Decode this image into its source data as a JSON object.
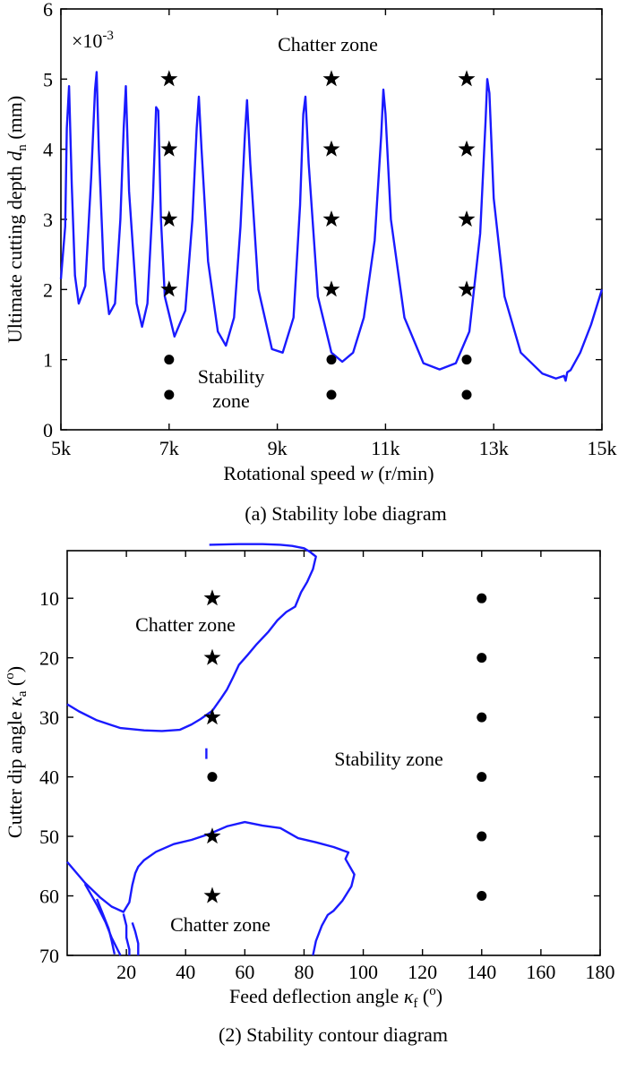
{
  "chart_data": [
    {
      "type": "line",
      "caption": "(a) Stability lobe diagram",
      "xlabel": "Rotational speed w (r/min)",
      "xlabel_parts": [
        "Rotational speed ",
        "w",
        " (r/min)"
      ],
      "ylabel_parts": [
        "Ultimate cutting depth ",
        "d",
        "n",
        " (mm)"
      ],
      "multiplier_base": "×10",
      "multiplier_exp": "-3",
      "xlim": [
        5000,
        15000
      ],
      "ylim": [
        0,
        6
      ],
      "xticks": [
        5000,
        7000,
        9000,
        11000,
        13000,
        15000
      ],
      "xtick_labels": [
        "5k",
        "7k",
        "9k",
        "11k",
        "13k",
        "15k"
      ],
      "yticks": [
        0,
        1,
        2,
        3,
        4,
        5,
        6
      ],
      "ytick_labels": [
        "0",
        "1",
        "2",
        "3",
        "4",
        "5",
        "6"
      ],
      "grid": false,
      "annotations": [
        "Chatter zone",
        "Stability",
        "zone"
      ],
      "lobe_curve": {
        "color": "#1a1aff",
        "x": [
          5000,
          5080,
          5110,
          5150,
          5200,
          5260,
          5330,
          5450,
          5560,
          5630,
          5660,
          5700,
          5790,
          5890,
          6000,
          6100,
          6160,
          6200,
          6260,
          6400,
          6500,
          6600,
          6700,
          6760,
          6800,
          6850,
          6920,
          7100,
          7300,
          7430,
          7510,
          7550,
          7600,
          7720,
          7900,
          8050,
          8200,
          8320,
          8400,
          8440,
          8500,
          8650,
          8900,
          9100,
          9300,
          9420,
          9480,
          9520,
          9580,
          9750,
          10000,
          10200,
          10400,
          10600,
          10800,
          10920,
          10960,
          11000,
          11100,
          11350,
          11700,
          12000,
          12300,
          12550,
          12750,
          12850,
          12880,
          12920,
          13000,
          13200,
          13500,
          13900,
          14150,
          14300,
          14330,
          14360,
          14420,
          14600,
          14800,
          15000
        ],
        "y": [
          2.15,
          2.9,
          4.3,
          4.9,
          3.5,
          2.2,
          1.8,
          2.05,
          3.6,
          4.85,
          5.1,
          4.0,
          2.3,
          1.65,
          1.8,
          3.0,
          4.3,
          4.9,
          3.4,
          1.8,
          1.47,
          1.8,
          3.3,
          4.6,
          4.55,
          3.0,
          1.9,
          1.33,
          1.7,
          3.0,
          4.3,
          4.75,
          4.0,
          2.4,
          1.4,
          1.2,
          1.6,
          2.9,
          4.2,
          4.7,
          3.8,
          2.0,
          1.15,
          1.1,
          1.6,
          3.2,
          4.5,
          4.75,
          3.8,
          1.9,
          1.1,
          0.97,
          1.1,
          1.6,
          2.7,
          4.2,
          4.85,
          4.5,
          3.0,
          1.6,
          0.95,
          0.86,
          0.95,
          1.4,
          2.8,
          4.4,
          5.0,
          4.8,
          3.3,
          1.9,
          1.1,
          0.8,
          0.73,
          0.77,
          0.7,
          0.82,
          0.85,
          1.1,
          1.5,
          2.0
        ]
      },
      "star_markers": {
        "x": [
          7000,
          7000,
          7000,
          7000,
          10000,
          10000,
          10000,
          10000,
          12500,
          12500,
          12500,
          12500
        ],
        "y": [
          5,
          4,
          3,
          2,
          5,
          4,
          3,
          2,
          5,
          4,
          3,
          2
        ]
      },
      "dot_markers": {
        "x": [
          7000,
          7000,
          10000,
          10000,
          12500,
          12500
        ],
        "y": [
          1,
          0.5,
          1,
          0.5,
          1,
          0.5
        ]
      }
    },
    {
      "type": "contour",
      "caption": "(2) Stability contour diagram",
      "xlabel_parts": [
        "Feed deflection angle ",
        "κ",
        "f",
        " (",
        "o",
        ")"
      ],
      "ylabel_parts": [
        "Cutter dip angle ",
        "κ",
        "a",
        " (",
        "o",
        ")"
      ],
      "xlim": [
        0,
        180
      ],
      "ylim": [
        70,
        2
      ],
      "y_inverted": true,
      "xticks": [
        20,
        40,
        60,
        80,
        100,
        120,
        140,
        160,
        180
      ],
      "xtick_labels": [
        "20",
        "40",
        "60",
        "80",
        "100",
        "120",
        "140",
        "160",
        "180"
      ],
      "yticks": [
        10,
        20,
        30,
        40,
        50,
        60,
        70
      ],
      "ytick_labels": [
        "10",
        "20",
        "30",
        "40",
        "50",
        "60",
        "70"
      ],
      "grid": false,
      "annotations": [
        "Chatter zone",
        "Stability  zone",
        "Chatter zone"
      ],
      "contour_color": "#1a1aff",
      "contours": [
        {
          "x": [
            0,
            4,
            10,
            18,
            26,
            32,
            38,
            42,
            45,
            47,
            49,
            52,
            54,
            56,
            58,
            61,
            64,
            68,
            71,
            74,
            77,
            79,
            81,
            83,
            84,
            83,
            82,
            80,
            76,
            72,
            66,
            58,
            48
          ],
          "y": [
            27.8,
            29,
            30.5,
            31.8,
            32.2,
            32.3,
            32.1,
            31.2,
            30.3,
            29.6,
            28.9,
            26.8,
            25.3,
            23.3,
            21.2,
            19.5,
            17.7,
            15.6,
            13.7,
            12.3,
            11.4,
            9.0,
            7.3,
            5.1,
            3.0,
            2.6,
            2.2,
            1.6,
            1.2,
            1.0,
            0.9,
            0.9,
            1.0
          ]
        },
        {
          "x": [
            47,
            47,
            47
          ],
          "y": [
            35.2,
            36.1,
            37.0
          ]
        },
        {
          "x": [
            0,
            6,
            11,
            15,
            19,
            21,
            22,
            23,
            24,
            26,
            30,
            36,
            42,
            48,
            54,
            60,
            66,
            72,
            78,
            84,
            90,
            95,
            94,
            97,
            96,
            93,
            90,
            88,
            86,
            84,
            83
          ],
          "y": [
            54.3,
            57.8,
            60.2,
            61.8,
            62.7,
            61.1,
            58.2,
            56.2,
            55.1,
            54.0,
            52.6,
            51.3,
            50.6,
            49.6,
            48.3,
            47.6,
            48.2,
            48.6,
            50.3,
            51.0,
            51.8,
            52.7,
            53.8,
            56.4,
            58.4,
            60.8,
            62.5,
            63.2,
            65.0,
            67.6,
            70.0
          ]
        },
        {
          "x": [
            6,
            10,
            13,
            15,
            17,
            18
          ],
          "y": [
            58.0,
            61.5,
            64.5,
            67.0,
            69.0,
            70.0
          ]
        },
        {
          "x": [
            10,
            12,
            14,
            15,
            16
          ],
          "y": [
            60.5,
            63.0,
            65.5,
            67.5,
            69.8
          ]
        },
        {
          "x": [
            19,
            20,
            20,
            21,
            21
          ],
          "y": [
            63.0,
            65.0,
            67.0,
            69.0,
            70.0
          ]
        },
        {
          "x": [
            22,
            23,
            24,
            24
          ],
          "y": [
            64.5,
            66.0,
            68.0,
            70.0
          ]
        }
      ],
      "star_markers": {
        "x": [
          49,
          49,
          49,
          49,
          49
        ],
        "y": [
          10,
          20,
          30,
          50,
          60
        ]
      },
      "dot_markers": {
        "x": [
          49,
          140,
          140,
          140,
          140,
          140,
          140
        ],
        "y": [
          40,
          10,
          20,
          30,
          40,
          50,
          60
        ]
      }
    }
  ]
}
